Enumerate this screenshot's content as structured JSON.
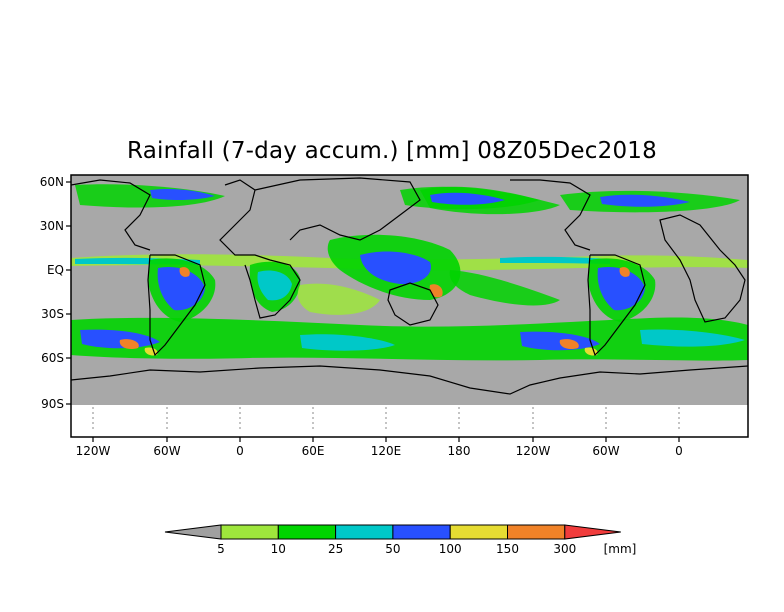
{
  "title": "Rainfall (7-day accum.) [mm] 08Z05Dec2018",
  "map": {
    "ocean_color": "#a8a8a8",
    "below_map_color": "#ffffff",
    "y_ticks": [
      "60N",
      "30N",
      "EQ",
      "30S",
      "60S",
      "90S"
    ],
    "x_ticks": [
      "120W",
      "60W",
      "0",
      "60E",
      "120E",
      "180",
      "120W",
      "60W",
      "0"
    ]
  },
  "colorbar": {
    "unit": "[mm]",
    "labels": [
      "5",
      "10",
      "25",
      "50",
      "100",
      "150",
      "300"
    ],
    "colors": [
      "#a0a0a0",
      "#9ee63c",
      "#00d400",
      "#00c8c8",
      "#2850ff",
      "#e6dc32",
      "#f08228",
      "#f03c3c"
    ],
    "color_names": [
      "gray",
      "light-green",
      "green",
      "cyan",
      "blue",
      "yellow",
      "orange",
      "red"
    ]
  }
}
